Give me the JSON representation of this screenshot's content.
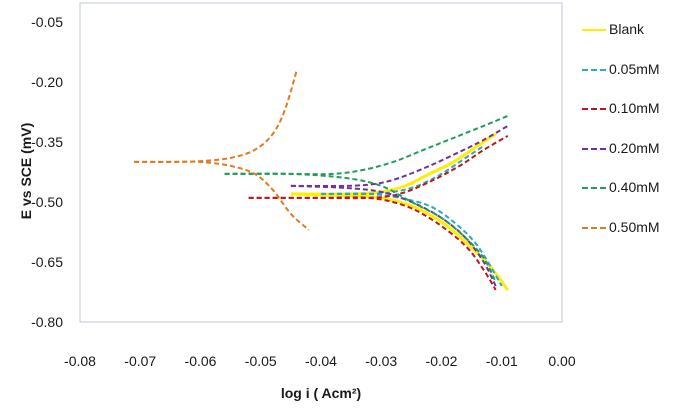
{
  "chart_data": {
    "type": "line",
    "title": "",
    "xlabel": "log i ( Acm²)",
    "ylabel": "E vs SCE (mV)",
    "xlim": [
      -0.08,
      0.0
    ],
    "ylim": [
      -0.8,
      -0.003
    ],
    "x_ticks": [
      "-0.08",
      "-0.07",
      "-0.06",
      "-0.05",
      "-0.04",
      "-0.03",
      "-0.02",
      "-0.01",
      "0.00"
    ],
    "y_ticks": [
      "-0.05",
      "-0.20",
      "-0.35",
      "-0.50",
      "-0.65",
      "-0.80"
    ],
    "grid": false,
    "legend_position": "right",
    "series": [
      {
        "name": "Blank",
        "color": "#ffee00",
        "style": "solid",
        "branches": [
          {
            "x": [
              -0.045,
              -0.035,
              -0.03,
              -0.026,
              -0.022,
              -0.018,
              -0.014,
              -0.011
            ],
            "y": [
              -0.48,
              -0.48,
              -0.475,
              -0.46,
              -0.43,
              -0.4,
              -0.36,
              -0.33
            ]
          },
          {
            "x": [
              -0.045,
              -0.035,
              -0.03,
              -0.025,
              -0.02,
              -0.016,
              -0.012,
              -0.009
            ],
            "y": [
              -0.48,
              -0.485,
              -0.49,
              -0.51,
              -0.55,
              -0.6,
              -0.66,
              -0.72
            ]
          }
        ]
      },
      {
        "name": "0.05mM",
        "color": "#2aa9c9",
        "style": "dashed",
        "branches": [
          {
            "x": [
              -0.04,
              -0.032,
              -0.028,
              -0.024,
              -0.02,
              -0.016,
              -0.013
            ],
            "y": [
              -0.48,
              -0.48,
              -0.475,
              -0.46,
              -0.43,
              -0.39,
              -0.36
            ]
          },
          {
            "x": [
              -0.04,
              -0.032,
              -0.027,
              -0.022,
              -0.018,
              -0.014,
              -0.01
            ],
            "y": [
              -0.48,
              -0.48,
              -0.49,
              -0.51,
              -0.55,
              -0.61,
              -0.71
            ]
          }
        ]
      },
      {
        "name": "0.10mM",
        "color": "#c0161b",
        "style": "dashed",
        "branches": [
          {
            "x": [
              -0.052,
              -0.04,
              -0.032,
              -0.027,
              -0.022,
              -0.017,
              -0.013,
              -0.009
            ],
            "y": [
              -0.49,
              -0.49,
              -0.49,
              -0.48,
              -0.45,
              -0.41,
              -0.37,
              -0.335
            ]
          },
          {
            "x": [
              -0.052,
              -0.04,
              -0.032,
              -0.026,
              -0.021,
              -0.016,
              -0.013,
              -0.011
            ],
            "y": [
              -0.49,
              -0.49,
              -0.49,
              -0.51,
              -0.55,
              -0.61,
              -0.67,
              -0.72
            ]
          }
        ]
      },
      {
        "name": "0.20mM",
        "color": "#7030a0",
        "style": "dashed",
        "branches": [
          {
            "x": [
              -0.045,
              -0.036,
              -0.031,
              -0.027,
              -0.022,
              -0.017,
              -0.013,
              -0.009
            ],
            "y": [
              -0.46,
              -0.46,
              -0.455,
              -0.44,
              -0.41,
              -0.375,
              -0.345,
              -0.31
            ]
          },
          {
            "x": [
              -0.045,
              -0.036,
              -0.03,
              -0.025,
              -0.02,
              -0.016,
              -0.013,
              -0.011
            ],
            "y": [
              -0.46,
              -0.465,
              -0.475,
              -0.5,
              -0.54,
              -0.59,
              -0.65,
              -0.71
            ]
          }
        ]
      },
      {
        "name": "0.40mM",
        "color": "#1f9e5a",
        "style": "dashed",
        "branches": [
          {
            "x": [
              -0.056,
              -0.045,
              -0.038,
              -0.033,
              -0.028,
              -0.023,
              -0.018,
              -0.013,
              -0.009
            ],
            "y": [
              -0.43,
              -0.43,
              -0.43,
              -0.42,
              -0.4,
              -0.37,
              -0.34,
              -0.31,
              -0.285
            ]
          },
          {
            "x": [
              -0.056,
              -0.045,
              -0.036,
              -0.03,
              -0.025,
              -0.02,
              -0.016,
              -0.013,
              -0.011
            ],
            "y": [
              -0.43,
              -0.43,
              -0.44,
              -0.46,
              -0.5,
              -0.54,
              -0.59,
              -0.64,
              -0.7
            ]
          }
        ]
      },
      {
        "name": "0.50mM",
        "color": "#e07b1f",
        "style": "dashed",
        "branches": [
          {
            "x": [
              -0.071,
              -0.065,
              -0.06,
              -0.055,
              -0.051,
              -0.048,
              -0.046,
              -0.044
            ],
            "y": [
              -0.4,
              -0.4,
              -0.398,
              -0.39,
              -0.37,
              -0.33,
              -0.27,
              -0.17
            ]
          },
          {
            "x": [
              -0.071,
              -0.065,
              -0.06,
              -0.055,
              -0.051,
              -0.048,
              -0.045,
              -0.042
            ],
            "y": [
              -0.4,
              -0.4,
              -0.4,
              -0.41,
              -0.43,
              -0.47,
              -0.53,
              -0.57
            ]
          }
        ]
      }
    ]
  },
  "legend": {
    "items": [
      {
        "label": "Blank",
        "color": "#ffee00",
        "style": "solid"
      },
      {
        "label": "0.05mM",
        "color": "#2aa9c9",
        "style": "dashed"
      },
      {
        "label": "0.10mM",
        "color": "#c0161b",
        "style": "dashed"
      },
      {
        "label": "0.20mM",
        "color": "#7030a0",
        "style": "dashed"
      },
      {
        "label": "0.40mM",
        "color": "#1f9e5a",
        "style": "dashed"
      },
      {
        "label": "0.50mM",
        "color": "#e07b1f",
        "style": "dashed"
      }
    ]
  }
}
